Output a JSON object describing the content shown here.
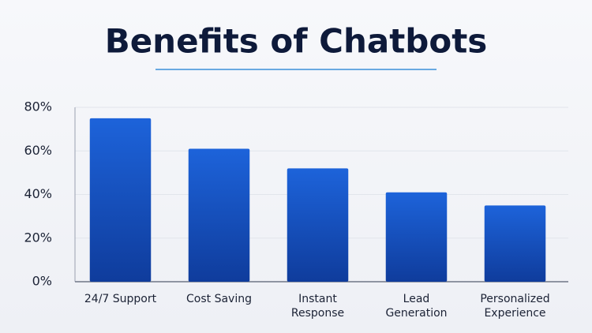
{
  "chart_data": {
    "type": "bar",
    "title": "Benefits of Chatbots",
    "categories": [
      "24/7 Support",
      "Cost Saving",
      "Instant\nResponse",
      "Lead\nGeneration",
      "Personalized\nExperience"
    ],
    "values": [
      75,
      61,
      52,
      41,
      35
    ],
    "color": "#1d63da",
    "ylim": [
      0,
      80
    ],
    "yticks": [
      {
        "value": 0,
        "label": "0%"
      },
      {
        "value": 20,
        "label": "20%"
      },
      {
        "value": 40,
        "label": "40%"
      },
      {
        "value": 60,
        "label": "60%"
      },
      {
        "value": 80,
        "label": "80%"
      }
    ],
    "grid": true
  }
}
